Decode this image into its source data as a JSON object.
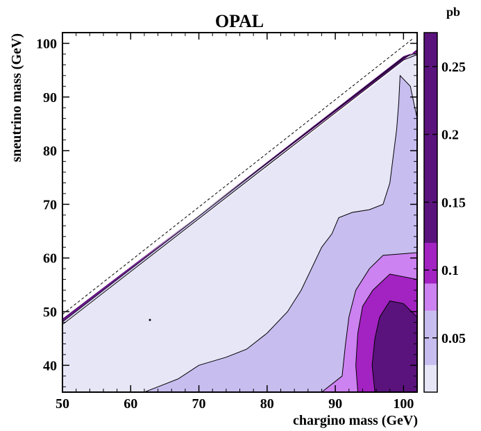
{
  "chart_data": {
    "type": "heatmap",
    "title": "OPAL",
    "xlabel": "chargino mass (GeV)",
    "ylabel": "sneutrino mass (GeV)",
    "xlim": [
      50,
      102
    ],
    "ylim": [
      35,
      102
    ],
    "x_ticks": [
      50,
      60,
      70,
      80,
      90,
      100
    ],
    "y_ticks": [
      40,
      50,
      60,
      70,
      80,
      90,
      100
    ],
    "grid": false,
    "kinematic_limit": {
      "style": "dashed",
      "points": [
        [
          50,
          49.5
        ],
        [
          101.5,
          101
        ]
      ]
    },
    "colorbar": {
      "unit": "pb",
      "range": [
        0.01,
        0.275
      ],
      "tick_values": [
        0.05,
        0.1,
        0.15,
        0.2,
        0.25
      ],
      "tick_labels": [
        "0.05",
        "0.1",
        "0.15",
        "0.2",
        "0.25"
      ],
      "levels": [
        {
          "from": 0.01,
          "to": 0.03,
          "color": "#e6e6f7"
        },
        {
          "from": 0.03,
          "to": 0.07,
          "color": "#c8bdef"
        },
        {
          "from": 0.07,
          "to": 0.09,
          "color": "#cc82f0"
        },
        {
          "from": 0.09,
          "to": 0.12,
          "color": "#a322c2"
        },
        {
          "from": 0.12,
          "to": 0.275,
          "color": "#5a137c"
        }
      ]
    },
    "regions": [
      {
        "level": 0.01,
        "points": [
          [
            50,
            35
          ],
          [
            102,
            35
          ],
          [
            102,
            98.5
          ],
          [
            50,
            47.5
          ]
        ]
      },
      {
        "level": 0.03,
        "points": [
          [
            62,
            35
          ],
          [
            102,
            35
          ],
          [
            102,
            86
          ],
          [
            101,
            92
          ],
          [
            99.5,
            94
          ],
          [
            99.3,
            89
          ],
          [
            99,
            84
          ],
          [
            98.5,
            79
          ],
          [
            98,
            74
          ],
          [
            97,
            70
          ],
          [
            95,
            69
          ],
          [
            92.5,
            68.5
          ],
          [
            90.5,
            67.5
          ],
          [
            89.5,
            64.5
          ],
          [
            88,
            62
          ],
          [
            86.5,
            58
          ],
          [
            85,
            54
          ],
          [
            83,
            50
          ],
          [
            80,
            46
          ],
          [
            77,
            43
          ],
          [
            74,
            41.5
          ],
          [
            70,
            40
          ],
          [
            67,
            37.5
          ],
          [
            64,
            36
          ]
        ]
      },
      {
        "level": 0.03,
        "points": [
          [
            50,
            47.8
          ],
          [
            100,
            96.8
          ],
          [
            102,
            97.8
          ],
          [
            102,
            98.6
          ],
          [
            50,
            48.6
          ]
        ]
      },
      {
        "level": 0.07,
        "points": [
          [
            88,
            35
          ],
          [
            102,
            35
          ],
          [
            102,
            61
          ],
          [
            97,
            60.5
          ],
          [
            95,
            58
          ],
          [
            93,
            54
          ],
          [
            92,
            49
          ],
          [
            91.5,
            44
          ],
          [
            91,
            38
          ]
        ]
      },
      {
        "level": 0.09,
        "points": [
          [
            93.3,
            35
          ],
          [
            102,
            35
          ],
          [
            102,
            56
          ],
          [
            98,
            57
          ],
          [
            95.5,
            54
          ],
          [
            94,
            51
          ],
          [
            93.3,
            46
          ],
          [
            93,
            40
          ]
        ]
      },
      {
        "level": 0.12,
        "points": [
          [
            95.8,
            35
          ],
          [
            102,
            35
          ],
          [
            102,
            49
          ],
          [
            100,
            51.5
          ],
          [
            98,
            52
          ],
          [
            96.5,
            49
          ],
          [
            95.8,
            45
          ],
          [
            95.4,
            40
          ]
        ]
      },
      {
        "level": 0.09,
        "points": [
          [
            50,
            48.1
          ],
          [
            100,
            97.3
          ],
          [
            102,
            98.3
          ],
          [
            102,
            98.8
          ],
          [
            50,
            48.5
          ]
        ]
      },
      {
        "level": 0.12,
        "points": [
          [
            50,
            48.3
          ],
          [
            100,
            97.6
          ],
          [
            102,
            98.5
          ],
          [
            102,
            98.9
          ],
          [
            50,
            48.7
          ]
        ]
      }
    ],
    "contours": [
      [
        [
          62,
          35
        ],
        [
          64,
          36
        ],
        [
          67,
          37.5
        ],
        [
          70,
          40
        ],
        [
          74,
          41.5
        ],
        [
          77,
          43
        ],
        [
          80,
          46
        ],
        [
          83,
          50
        ],
        [
          85,
          54
        ],
        [
          86.5,
          58
        ],
        [
          88,
          62
        ],
        [
          89.5,
          64.5
        ],
        [
          90.5,
          67.5
        ],
        [
          92.5,
          68.5
        ],
        [
          95,
          69
        ],
        [
          97,
          70
        ],
        [
          98,
          74
        ],
        [
          98.5,
          79
        ],
        [
          99,
          84
        ],
        [
          99.3,
          89
        ],
        [
          99.5,
          94
        ],
        [
          101,
          92
        ],
        [
          102,
          86
        ]
      ],
      [
        [
          88,
          35
        ],
        [
          91,
          38
        ],
        [
          91.5,
          44
        ],
        [
          92,
          49
        ],
        [
          93,
          54
        ],
        [
          95,
          58
        ],
        [
          97,
          60.5
        ],
        [
          102,
          61
        ]
      ],
      [
        [
          93.3,
          35
        ],
        [
          93,
          40
        ],
        [
          93.3,
          46
        ],
        [
          94,
          51
        ],
        [
          95.5,
          54
        ],
        [
          98,
          57
        ],
        [
          102,
          56
        ]
      ],
      [
        [
          95.8,
          35
        ],
        [
          95.4,
          40
        ],
        [
          95.8,
          45
        ],
        [
          96.5,
          49
        ],
        [
          98,
          52
        ],
        [
          100,
          51.5
        ],
        [
          102,
          49
        ]
      ],
      [
        [
          50,
          47.6
        ],
        [
          100,
          96.9
        ],
        [
          102,
          97.9
        ]
      ],
      [
        [
          50,
          48.1
        ],
        [
          100,
          97.3
        ],
        [
          102,
          98.3
        ]
      ]
    ]
  }
}
